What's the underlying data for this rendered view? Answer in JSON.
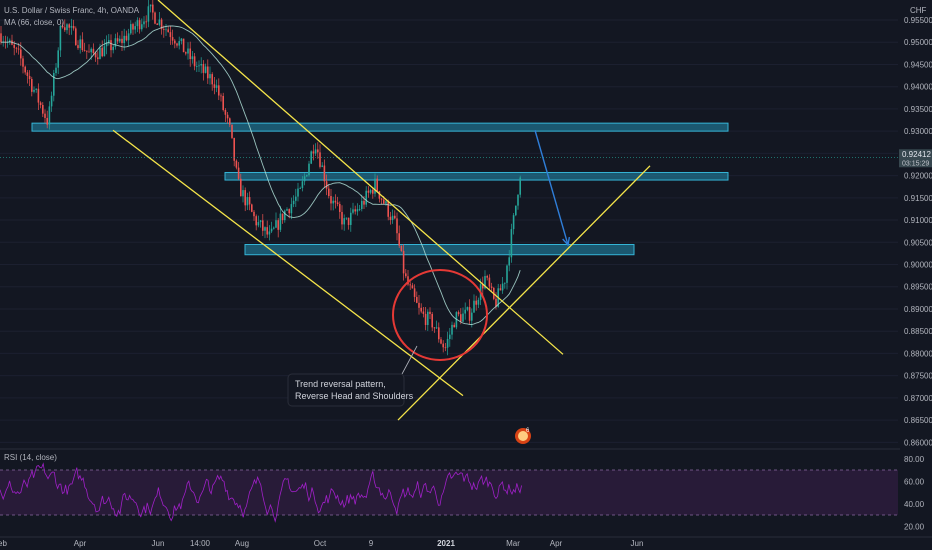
{
  "header": {
    "symbol_line": "U.S. Dollar / Swiss Franc, 4h, OANDA",
    "ma_line": "MA (66, close, 0)",
    "rsi_line": "RSI (14, close)"
  },
  "chart_data": {
    "type": "candlestick",
    "price": {
      "currency": "CHF",
      "ticks": [
        "0.95500",
        "0.95000",
        "0.94500",
        "0.94000",
        "0.93500",
        "0.93000",
        "0.92500",
        "0.92000",
        "0.91500",
        "0.91000",
        "0.90500",
        "0.90000",
        "0.89500",
        "0.89000",
        "0.88500",
        "0.88000",
        "0.87500",
        "0.87000",
        "0.86500",
        "0.86000"
      ],
      "ylim": [
        0.8585,
        0.9595
      ],
      "last_price": "0.92412",
      "countdown": "03:15:29",
      "ma_period": 66
    },
    "x_labels": [
      "Feb",
      "Apr",
      "Jun",
      "14:00",
      "Aug",
      "Oct",
      "9",
      "2021",
      "Mar",
      "Apr",
      "Jun"
    ],
    "close_path": [
      [
        0,
        0.952
      ],
      [
        20,
        0.9465
      ],
      [
        48,
        0.932
      ],
      [
        62,
        0.955
      ],
      [
        90,
        0.947
      ],
      [
        120,
        0.95
      ],
      [
        150,
        0.957
      ],
      [
        175,
        0.951
      ],
      [
        195,
        0.945
      ],
      [
        215,
        0.941
      ],
      [
        230,
        0.93
      ],
      [
        238,
        0.918
      ],
      [
        255,
        0.91
      ],
      [
        270,
        0.906
      ],
      [
        285,
        0.912
      ],
      [
        300,
        0.916
      ],
      [
        315,
        0.928
      ],
      [
        330,
        0.915
      ],
      [
        345,
        0.909
      ],
      [
        360,
        0.913
      ],
      [
        375,
        0.918
      ],
      [
        395,
        0.909
      ],
      [
        405,
        0.897
      ],
      [
        420,
        0.889
      ],
      [
        432,
        0.887
      ],
      [
        445,
        0.881
      ],
      [
        455,
        0.888
      ],
      [
        470,
        0.889
      ],
      [
        485,
        0.897
      ],
      [
        495,
        0.891
      ],
      [
        505,
        0.897
      ],
      [
        515,
        0.912
      ],
      [
        522,
        0.924
      ]
    ],
    "zones": [
      {
        "from": 0.93,
        "to": 0.9318,
        "x0": 32,
        "x1": 728
      },
      {
        "from": 0.919,
        "to": 0.9207,
        "x0": 225,
        "x1": 728
      },
      {
        "from": 0.9022,
        "to": 0.9045,
        "x0": 245,
        "x1": 634
      }
    ],
    "trendlines": [
      {
        "x0": 158,
        "y0": 0.9595,
        "x1": 563,
        "y1": 0.8798
      },
      {
        "x0": 113,
        "y0": 0.9302,
        "x1": 463,
        "y1": 0.8705
      },
      {
        "x0": 398,
        "y0": 0.865,
        "x1": 650,
        "y1": 0.9222
      }
    ],
    "arrow": {
      "x0": 535,
      "y0": 0.9302,
      "x1": 568,
      "y1": 0.9044
    },
    "annotation": {
      "line1": "Trend reversal pattern,",
      "line2": "Reverse Head and Shoulders"
    },
    "rsi": {
      "ticks": [
        "80.00",
        "60.00",
        "40.00",
        "20.00"
      ],
      "ylim": [
        14,
        86
      ],
      "upper": 70,
      "lower": 30
    }
  },
  "colors": {
    "background": "#131722",
    "up": "#26a69a",
    "down": "#ef5350",
    "ma": "#b0e0d8",
    "zone_fill": "#1f6f8b",
    "zone_border": "#35b4d6",
    "trend": "#f5e54a",
    "circle": "#e53935",
    "arrow": "#2f7ed8",
    "rsi_line": "#a020c8",
    "rsi_band": "#3a1f4b",
    "price_badge": "#37474f"
  }
}
